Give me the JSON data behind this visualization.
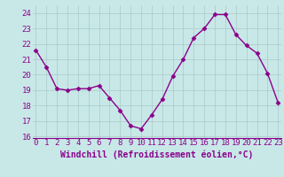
{
  "x": [
    0,
    1,
    2,
    3,
    4,
    5,
    6,
    7,
    8,
    9,
    10,
    11,
    12,
    13,
    14,
    15,
    16,
    17,
    18,
    19,
    20,
    21,
    22,
    23
  ],
  "y": [
    21.6,
    20.5,
    19.1,
    19.0,
    19.1,
    19.1,
    19.3,
    18.5,
    17.7,
    16.7,
    16.5,
    17.4,
    18.4,
    19.9,
    21.0,
    22.4,
    23.0,
    23.9,
    23.9,
    22.6,
    21.9,
    21.4,
    20.1,
    18.2
  ],
  "line_color": "#8b008b",
  "marker": "D",
  "marker_size": 2.5,
  "line_width": 1.0,
  "bg_color": "#c8e8e8",
  "grid_color": "#aac8c8",
  "xlabel": "Windchill (Refroidissement éolien,°C)",
  "xlim": [
    0,
    23
  ],
  "ylim": [
    16,
    24
  ],
  "yticks": [
    16,
    17,
    18,
    19,
    20,
    21,
    22,
    23,
    24
  ],
  "xticks": [
    0,
    1,
    2,
    3,
    4,
    5,
    6,
    7,
    8,
    9,
    10,
    11,
    12,
    13,
    14,
    15,
    16,
    17,
    18,
    19,
    20,
    21,
    22,
    23
  ],
  "label_color": "#8b008b",
  "tick_label_color": "#8b008b",
  "yticklabels": [
    "16",
    "17",
    "18",
    "19",
    "20",
    "21",
    "22",
    "23",
    "24"
  ],
  "xticklabels": [
    "0",
    "1",
    "2",
    "3",
    "4",
    "5",
    "6",
    "7",
    "8",
    "9",
    "10",
    "11",
    "12",
    "13",
    "14",
    "15",
    "16",
    "17",
    "18",
    "19",
    "20",
    "21",
    "22",
    "23"
  ],
  "font_size": 6.5,
  "xlabel_fontsize": 7.0
}
